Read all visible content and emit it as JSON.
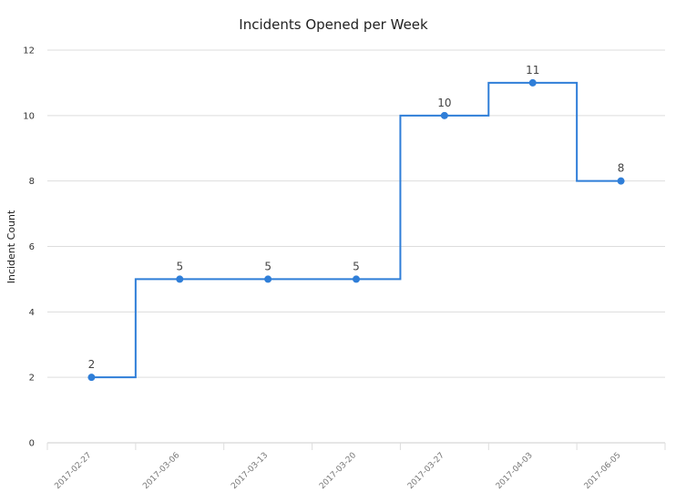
{
  "chart_data": {
    "type": "line",
    "step": "center",
    "title": "Incidents Opened per Week",
    "xlabel": "",
    "ylabel": "Incident Count",
    "categories": [
      "2017-02-27",
      "2017-03-06",
      "2017-03-13",
      "2017-03-20",
      "2017-03-27",
      "2017-04-03",
      "2017-06-05"
    ],
    "series": [
      {
        "values": [
          2,
          5,
          5,
          5,
          10,
          11,
          8
        ],
        "color": "#2f7ed8"
      }
    ],
    "ylim": [
      0,
      12
    ],
    "yticks": [
      0,
      2,
      4,
      6,
      8,
      10,
      12
    ],
    "grid": true,
    "legend": "none",
    "data_labels": true
  }
}
